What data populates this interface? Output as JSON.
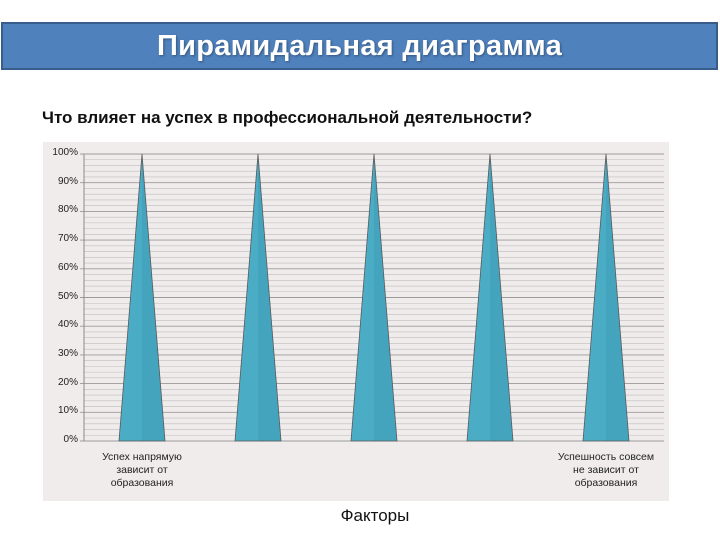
{
  "slide": {
    "title": "Пирамидальная диаграмма",
    "question": "Что влияет на успех в профессиональной деятельности?"
  },
  "colors": {
    "title_bar": "#4f81bd",
    "pyramid_fill": "#4bacc6",
    "chart_background": "#f0ecec",
    "gridline": "#a6a6a6"
  },
  "chart_data": {
    "type": "bar",
    "style": "pyramid",
    "categories": [
      "Успех напрямую зависит от образования",
      "",
      "",
      "",
      "Успешность совсем не зависит от образования"
    ],
    "category_labels": [
      "Успех напрямую\nзависит от\nобразования",
      "",
      "",
      "",
      "Успешность совсем\nне зависит от\nобразования"
    ],
    "values": [
      100,
      100,
      100,
      100,
      100
    ],
    "ylim": [
      0,
      100
    ],
    "yticks": [
      "0%",
      "10%",
      "20%",
      "30%",
      "40%",
      "50%",
      "60%",
      "70%",
      "80%",
      "90%",
      "100%"
    ],
    "xlabel": "Факторы",
    "ylabel": "",
    "grid": true
  }
}
